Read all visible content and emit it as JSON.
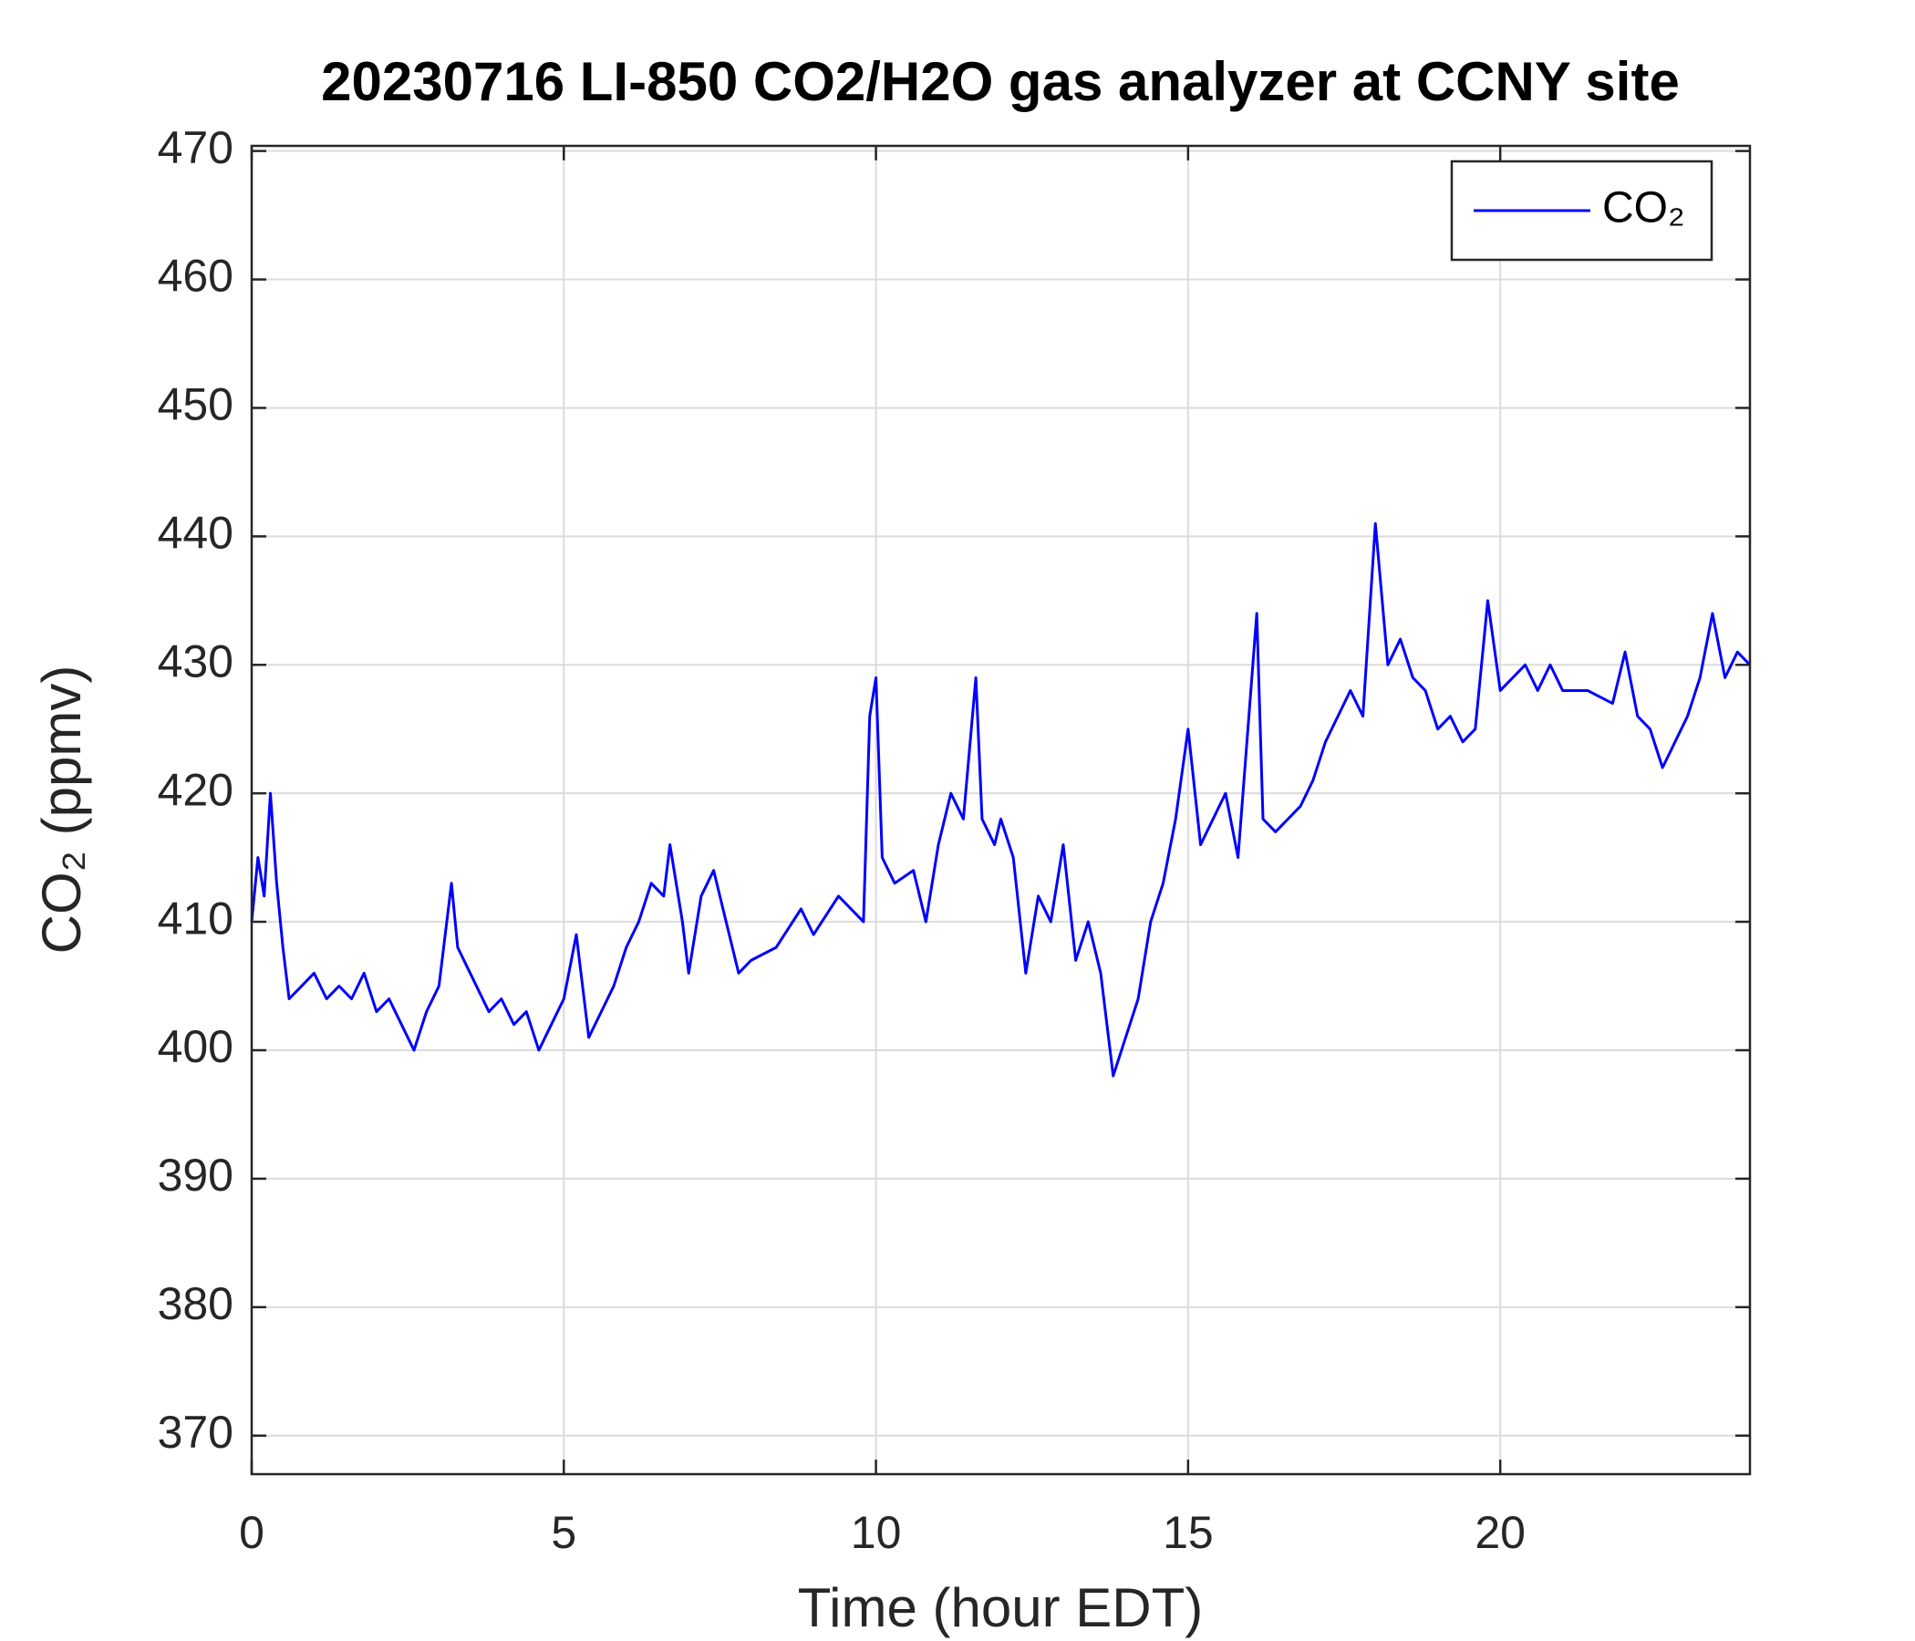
{
  "chart_data": {
    "type": "line",
    "title": "20230716 LI-850 CO2/H2O gas analyzer at CCNY site",
    "xlabel": "Time (hour EDT)",
    "ylabel": "CO₂ (ppmv)",
    "xlim": [
      0,
      24
    ],
    "ylim": [
      367,
      470.4
    ],
    "xticks": [
      0,
      5,
      10,
      15,
      20
    ],
    "yticks": [
      370,
      380,
      390,
      400,
      410,
      420,
      430,
      440,
      450,
      460,
      470
    ],
    "grid": true,
    "legend": "upper right",
    "series": [
      {
        "name": "CO₂",
        "color": "#0000ff",
        "x": [
          0.0,
          0.1,
          0.2,
          0.3,
          0.4,
          0.5,
          0.6,
          0.8,
          1.0,
          1.2,
          1.4,
          1.6,
          1.8,
          2.0,
          2.2,
          2.4,
          2.6,
          2.8,
          3.0,
          3.2,
          3.3,
          3.5,
          3.8,
          4.0,
          4.2,
          4.4,
          4.6,
          4.8,
          5.0,
          5.2,
          5.4,
          5.6,
          5.8,
          6.0,
          6.2,
          6.4,
          6.6,
          6.7,
          6.9,
          7.0,
          7.2,
          7.4,
          7.6,
          7.8,
          8.0,
          8.4,
          8.8,
          9.0,
          9.4,
          9.8,
          9.9,
          10.0,
          10.1,
          10.3,
          10.6,
          10.8,
          11.0,
          11.2,
          11.4,
          11.6,
          11.7,
          11.9,
          12.0,
          12.2,
          12.4,
          12.6,
          12.8,
          13.0,
          13.2,
          13.4,
          13.6,
          13.8,
          14.0,
          14.2,
          14.4,
          14.6,
          14.8,
          15.0,
          15.2,
          15.4,
          15.6,
          15.8,
          16.1,
          16.2,
          16.4,
          16.6,
          16.8,
          17.0,
          17.2,
          17.4,
          17.6,
          17.8,
          18.0,
          18.2,
          18.4,
          18.6,
          18.8,
          19.0,
          19.2,
          19.4,
          19.6,
          19.8,
          20.0,
          20.2,
          20.4,
          20.6,
          20.8,
          21.0,
          21.4,
          21.8,
          22.0,
          22.2,
          22.4,
          22.6,
          22.8,
          23.0,
          23.2,
          23.4,
          23.6,
          23.8,
          24.0
        ],
        "values": [
          410,
          415,
          412,
          420,
          413,
          408,
          404,
          405,
          406,
          404,
          405,
          404,
          406,
          403,
          404,
          402,
          400,
          403,
          405,
          413,
          408,
          406,
          403,
          404,
          402,
          403,
          400,
          402,
          404,
          409,
          401,
          403,
          405,
          408,
          410,
          413,
          412,
          416,
          410,
          406,
          412,
          414,
          410,
          406,
          407,
          408,
          411,
          409,
          412,
          410,
          426,
          429,
          415,
          413,
          414,
          410,
          416,
          420,
          418,
          429,
          418,
          416,
          418,
          415,
          406,
          412,
          410,
          416,
          407,
          410,
          406,
          398,
          401,
          404,
          410,
          413,
          418,
          425,
          416,
          418,
          420,
          415,
          434,
          418,
          417,
          418,
          419,
          421,
          424,
          426,
          428,
          426,
          441,
          430,
          432,
          429,
          428,
          425,
          426,
          424,
          425,
          435,
          428,
          429,
          430,
          428,
          430,
          428,
          428,
          427,
          431,
          426,
          425,
          422,
          424,
          426,
          429,
          434,
          429,
          431,
          430
        ]
      }
    ]
  }
}
